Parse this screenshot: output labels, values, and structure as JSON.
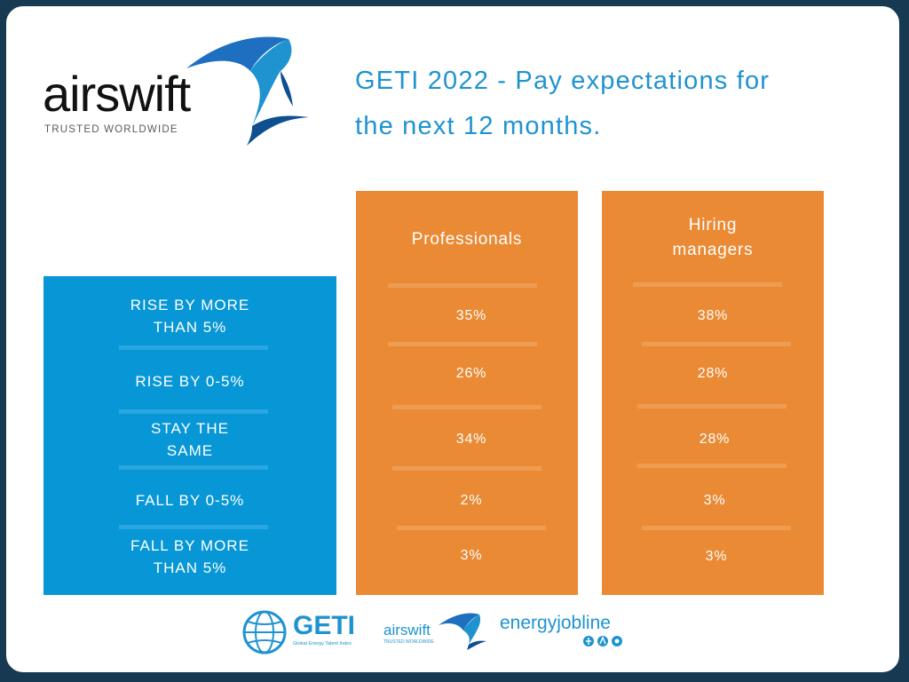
{
  "colors": {
    "blue": "#0897d6",
    "orange": "#ea8a35",
    "frame": "#173a52",
    "title": "#1f93d0"
  },
  "logo": {
    "brand": "airswift",
    "tagline": "TRUSTED WORLDWIDE"
  },
  "title": {
    "line1": "GETI 2022 - Pay expectations for",
    "line2": "the next 12 months."
  },
  "chart_data": {
    "type": "table",
    "title": "GETI 2022 - Pay expectations for the next 12 months.",
    "columns": [
      "Professionals",
      "Hiring managers"
    ],
    "rows": [
      {
        "label": "RISE BY MORE THAN 5%",
        "values": [
          "35%",
          "38%"
        ]
      },
      {
        "label": "RISE BY 0-5%",
        "values": [
          "26%",
          "28%"
        ]
      },
      {
        "label": "STAY THE SAME",
        "values": [
          "34%",
          "28%"
        ]
      },
      {
        "label": "FALL BY 0-5%",
        "values": [
          "2%",
          "3%"
        ]
      },
      {
        "label": "FALL BY MORE THAN 5%",
        "values": [
          "3%",
          "3%"
        ]
      }
    ]
  },
  "labels": {
    "col1": "Professionals",
    "col2_line1": "Hiring",
    "col2_line2": "managers",
    "r1a": "RISE BY MORE",
    "r1b": "THAN 5%",
    "r2": "RISE BY 0-5%",
    "r3a": "STAY THE",
    "r3b": "SAME",
    "r4": "FALL BY 0-5%",
    "r5a": "FALL BY MORE",
    "r5b": "THAN 5%"
  },
  "values": {
    "p": [
      "35%",
      "26%",
      "34%",
      "2%",
      "3%"
    ],
    "h": [
      "38%",
      "28%",
      "28%",
      "3%",
      "3%"
    ]
  },
  "footer": {
    "geti": "GETI",
    "geti_sub": "Global Energy Talent Index",
    "airswift": "airswift",
    "airswift_tag": "TRUSTED WORLDWIDE",
    "energyjobline": "energyjobline"
  }
}
